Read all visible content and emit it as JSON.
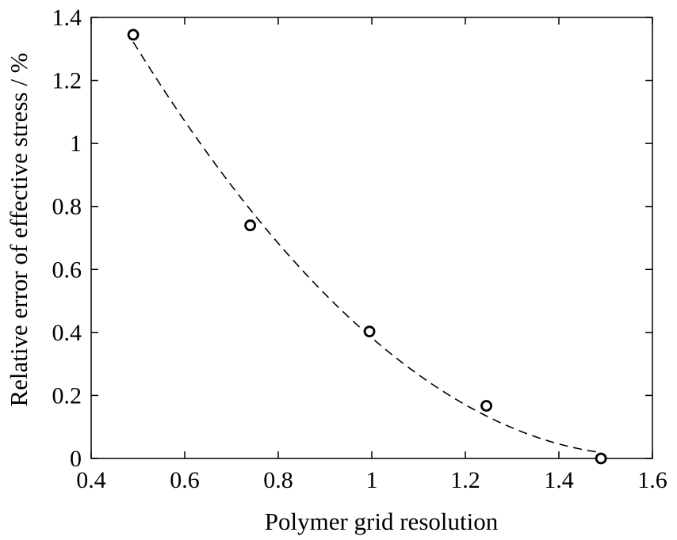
{
  "chart_data": {
    "type": "scatter",
    "title": "",
    "xlabel": "Polymer grid resolution",
    "ylabel": "Relative error of effective stress / %",
    "xlim": [
      0.4,
      1.6
    ],
    "ylim": [
      0,
      1.4
    ],
    "xticks": [
      0.4,
      0.6,
      0.8,
      1.0,
      1.2,
      1.4,
      1.6
    ],
    "xtick_labels": [
      "0.4",
      "0.6",
      "0.8",
      "1",
      "1.2",
      "1.4",
      "1.6"
    ],
    "yticks": [
      0,
      0.2,
      0.4,
      0.6,
      0.8,
      1.0,
      1.2,
      1.4
    ],
    "ytick_labels": [
      "0",
      "0.2",
      "0.4",
      "0.6",
      "0.8",
      "1",
      "1.2",
      "1.4"
    ],
    "grid": false,
    "series": [
      {
        "marker": "open-circle",
        "x": [
          0.49,
          0.74,
          0.995,
          1.245,
          1.49
        ],
        "y": [
          1.345,
          0.74,
          0.403,
          0.167,
          0.0
        ]
      },
      {
        "style": "dashed-line",
        "fit": "quadratic",
        "x": [
          0.49,
          0.74,
          0.995,
          1.245,
          1.49
        ],
        "y": [
          1.345,
          0.74,
          0.403,
          0.167,
          0.0
        ]
      }
    ]
  }
}
